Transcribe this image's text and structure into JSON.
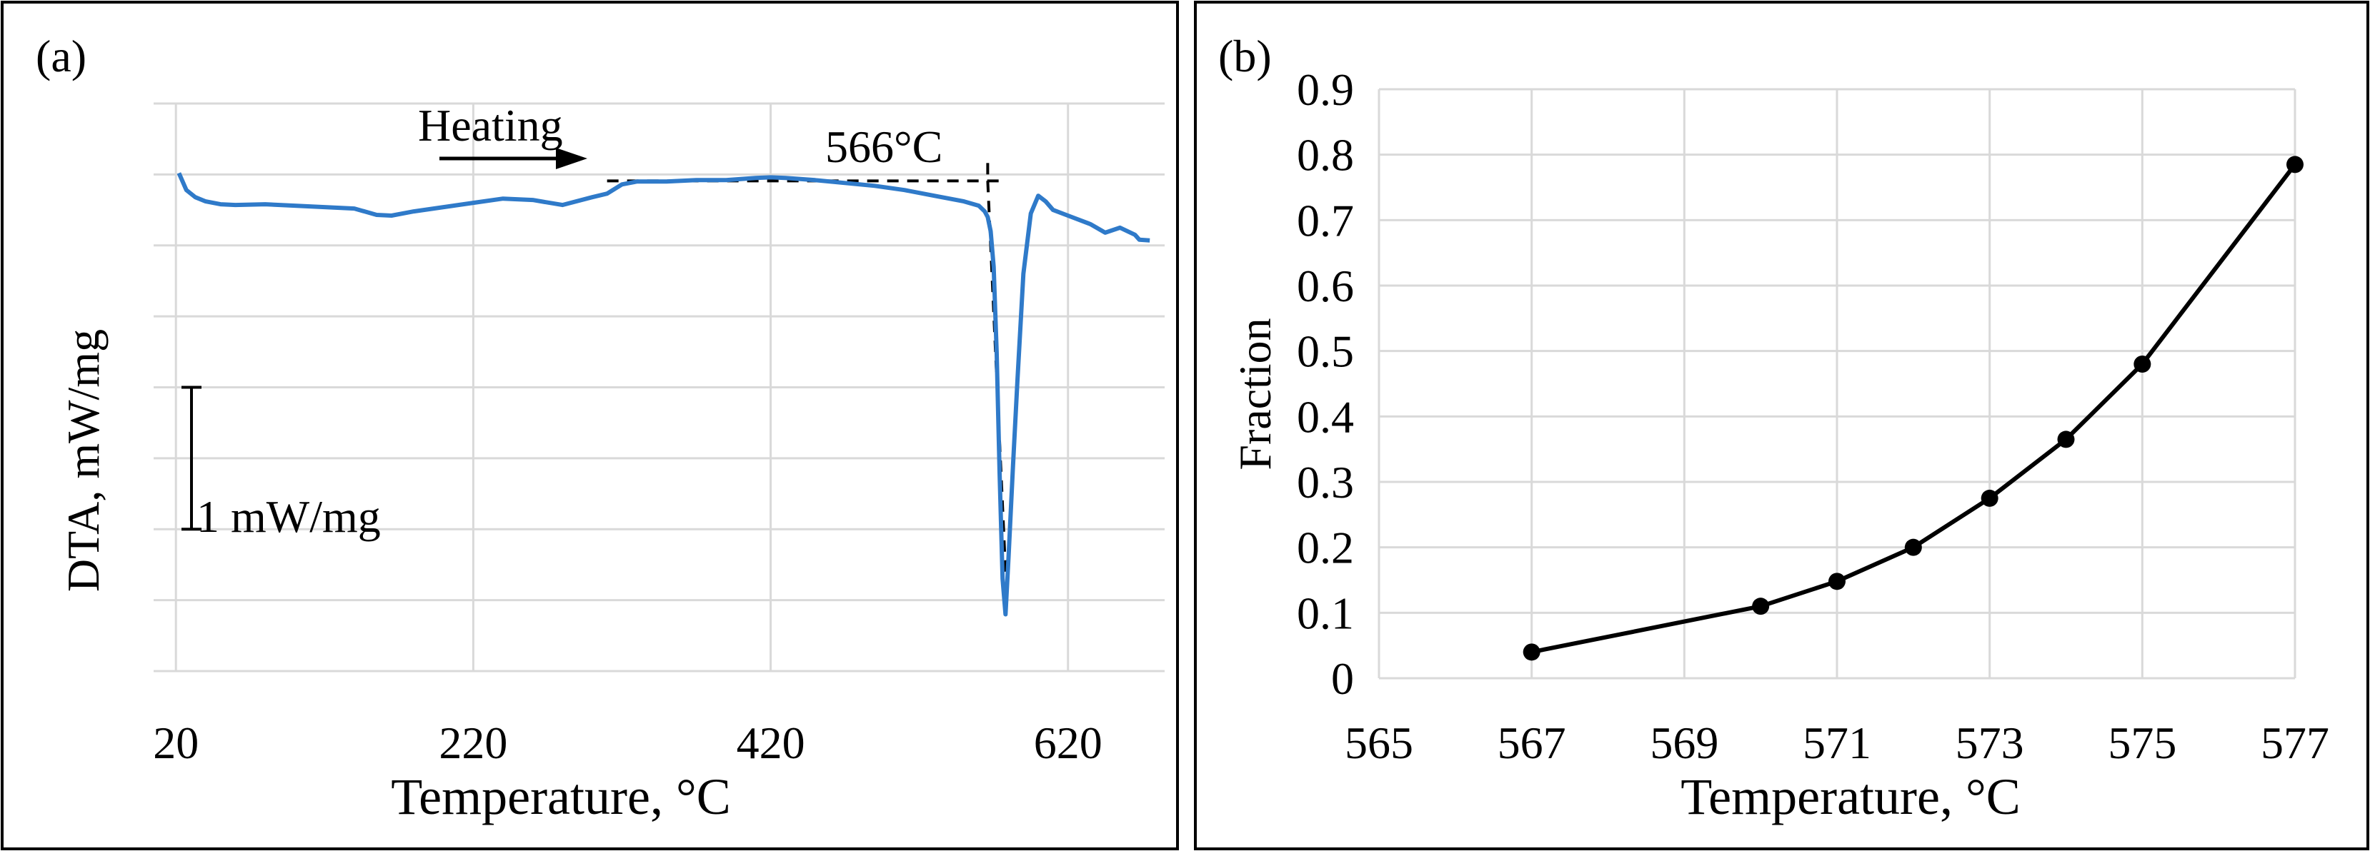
{
  "chart_data": [
    {
      "panel_label": "(a)",
      "type": "line",
      "xlabel": "Temperature, °C",
      "ylabel": "DTA, mW/mg",
      "xticks": [
        "20",
        "220",
        "420",
        "620"
      ],
      "xlim": [
        5,
        685
      ],
      "ylim": [
        -7,
        1
      ],
      "yticks_unlabeled": [
        1,
        0,
        -1,
        -2,
        -3,
        -4,
        -5,
        -6,
        -7
      ],
      "grid": true,
      "line_color": "#2f7ac9",
      "annotations": {
        "heating_label": "Heating",
        "onset_label": "566°C",
        "scale_bar_label": "1 mW/mg",
        "onset_temperature": 566
      },
      "scale_bar": {
        "y_from": -5,
        "y_to": -3
      },
      "series": [
        {
          "x": [
            22,
            27,
            33,
            40,
            50,
            60,
            80,
            100,
            120,
            140,
            155,
            165,
            180,
            200,
            220,
            240,
            260,
            280,
            300,
            310,
            320,
            330,
            340,
            350,
            370,
            390,
            410,
            420,
            430,
            450,
            470,
            490,
            510,
            530,
            550,
            560,
            564,
            566,
            568,
            570,
            572,
            574,
            576,
            578,
            580,
            583,
            586,
            590,
            595,
            600,
            605,
            610,
            620,
            635,
            645,
            655,
            665,
            668,
            675
          ],
          "y": [
            0.02,
            -0.22,
            -0.32,
            -0.38,
            -0.42,
            -0.43,
            -0.42,
            -0.44,
            -0.46,
            -0.48,
            -0.57,
            -0.58,
            -0.52,
            -0.46,
            -0.4,
            -0.34,
            -0.36,
            -0.43,
            -0.32,
            -0.27,
            -0.14,
            -0.1,
            -0.1,
            -0.1,
            -0.08,
            -0.08,
            -0.05,
            -0.04,
            -0.05,
            -0.08,
            -0.12,
            -0.16,
            -0.22,
            -0.3,
            -0.38,
            -0.44,
            -0.52,
            -0.6,
            -0.8,
            -1.3,
            -2.5,
            -4.2,
            -5.7,
            -6.2,
            -5.4,
            -4.1,
            -2.9,
            -1.4,
            -0.55,
            -0.3,
            -0.38,
            -0.5,
            -0.58,
            -0.7,
            -0.82,
            -0.75,
            -0.85,
            -0.92,
            -0.93
          ]
        }
      ]
    },
    {
      "panel_label": "(b)",
      "type": "line",
      "xlabel": "Temperature, °C",
      "ylabel": "Fraction",
      "xticks": [
        "565",
        "567",
        "569",
        "571",
        "573",
        "575",
        "577"
      ],
      "yticks": [
        "0",
        "0.1",
        "0.2",
        "0.3",
        "0.4",
        "0.5",
        "0.6",
        "0.7",
        "0.8",
        "0.9"
      ],
      "xlim": [
        565,
        577
      ],
      "ylim": [
        0,
        0.9
      ],
      "grid": true,
      "markers": true,
      "line_color": "#000000",
      "series": [
        {
          "x": [
            567,
            570,
            571,
            572,
            573,
            574,
            575,
            577
          ],
          "y": [
            0.04,
            0.11,
            0.148,
            0.2,
            0.275,
            0.365,
            0.48,
            0.785
          ]
        }
      ]
    }
  ]
}
